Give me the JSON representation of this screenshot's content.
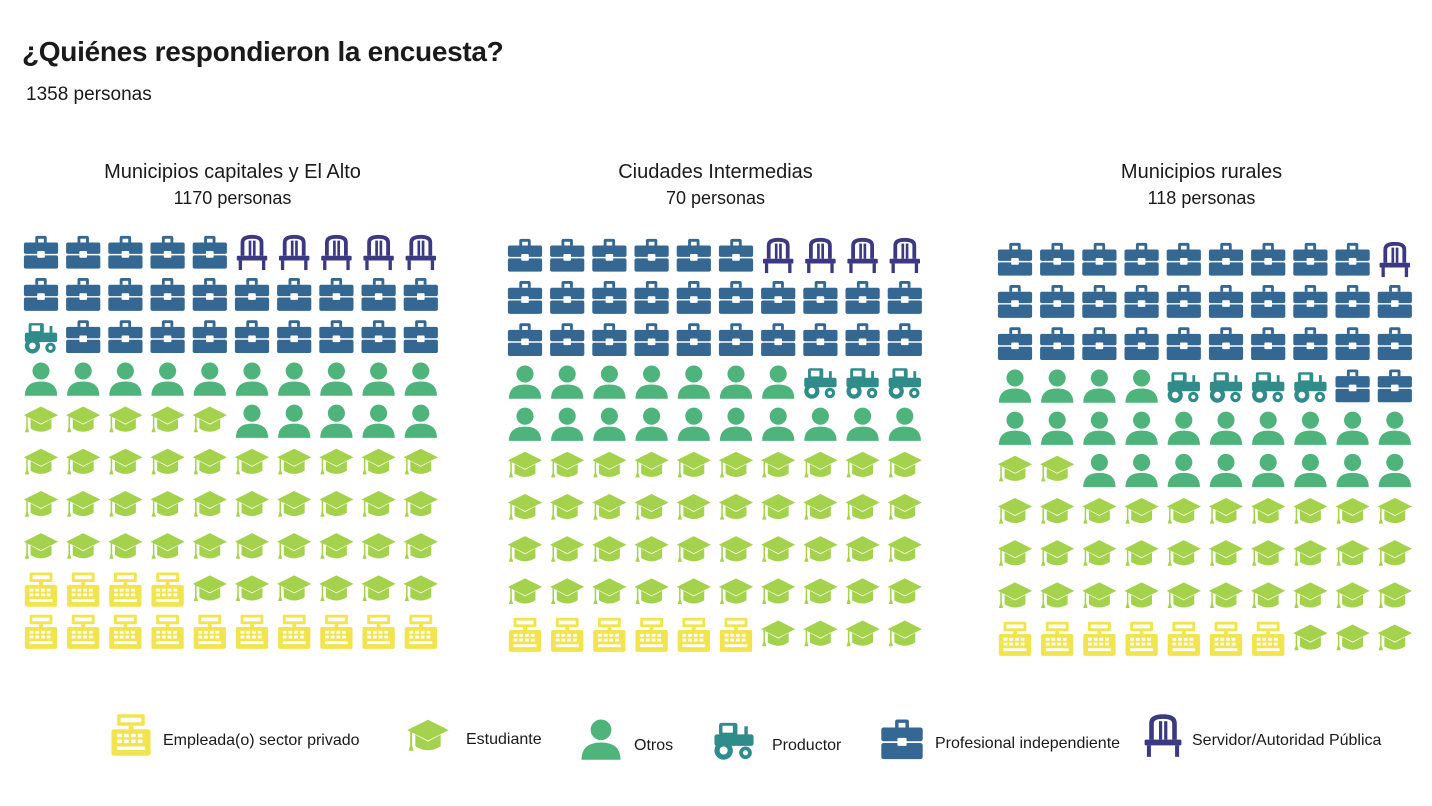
{
  "title": "¿Quiénes respondieron la encuesta?",
  "subtitle": "1358 personas",
  "colors": {
    "empleada": "#f2e44e",
    "estudiante": "#a5d24c",
    "otros": "#4fb37c",
    "productor": "#2f8c8a",
    "profesional": "#346791",
    "servidor": "#3b3982"
  },
  "chart_data": {
    "type": "waffle",
    "stack_order": [
      "empleada",
      "estudiante",
      "otros",
      "productor",
      "profesional",
      "servidor"
    ],
    "legend": [
      {
        "key": "empleada",
        "label": "Empleada(o) sector privado",
        "icon": "cash-register-icon"
      },
      {
        "key": "estudiante",
        "label": "Estudiante",
        "icon": "graduation-cap-icon"
      },
      {
        "key": "otros",
        "label": "Otros",
        "icon": "person-icon"
      },
      {
        "key": "productor",
        "label": "Productor",
        "icon": "tractor-icon"
      },
      {
        "key": "profesional",
        "label": "Profesional independiente",
        "icon": "briefcase-icon"
      },
      {
        "key": "servidor",
        "label": "Servidor/Autoridad Pública",
        "icon": "chair-icon"
      }
    ],
    "panels": [
      {
        "title": "Municipios capitales y El Alto",
        "subtitle": "1170 personas",
        "icons": {
          "empleada": 14,
          "estudiante": 41,
          "otros": 15,
          "productor": 1,
          "profesional": 24,
          "servidor": 5
        }
      },
      {
        "title": "Ciudades Intermedias",
        "subtitle": "70 personas",
        "icons": {
          "empleada": 6,
          "estudiante": 44,
          "otros": 17,
          "productor": 3,
          "profesional": 26,
          "servidor": 4
        }
      },
      {
        "title": "Municipios rurales",
        "subtitle": "118 personas",
        "icons": {
          "empleada": 7,
          "estudiante": 35,
          "otros": 22,
          "productor": 4,
          "profesional": 31,
          "servidor": 1
        }
      }
    ]
  }
}
